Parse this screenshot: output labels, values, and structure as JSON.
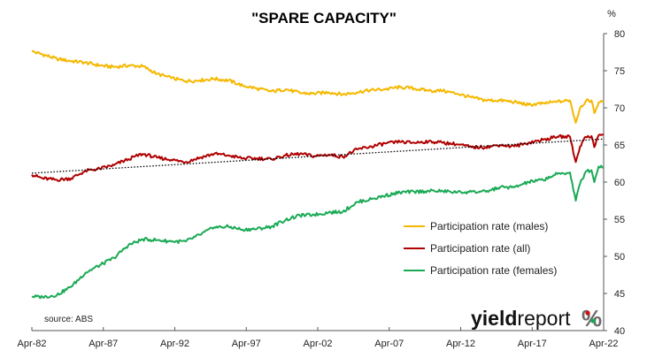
{
  "chart_data": {
    "type": "line",
    "title": "\"SPARE CAPACITY\"",
    "ylabel": "%",
    "xlabel": "",
    "ylim": [
      40,
      80
    ],
    "y_ticks": [
      "40",
      "45",
      "50",
      "55",
      "60",
      "65",
      "70",
      "75",
      "80"
    ],
    "x_ticks": [
      "Apr-82",
      "Apr-87",
      "Apr-92",
      "Apr-97",
      "Apr-02",
      "Apr-07",
      "Apr-12",
      "Apr-17",
      "Apr-22"
    ],
    "x_range": [
      1982.25,
      2022.25
    ],
    "grid": false,
    "legend_position": "lower-right",
    "source": "source: ABS",
    "logo": "yieldreport %",
    "series": [
      {
        "name": "Participation rate (males)",
        "color": "#f5b800",
        "points": [
          [
            1982.25,
            77.6
          ],
          [
            1983.0,
            77.2
          ],
          [
            1984.0,
            76.6
          ],
          [
            1985.0,
            76.3
          ],
          [
            1986.0,
            76.1
          ],
          [
            1987.0,
            75.7
          ],
          [
            1988.0,
            75.5
          ],
          [
            1989.0,
            75.7
          ],
          [
            1990.0,
            75.6
          ],
          [
            1991.0,
            74.6
          ],
          [
            1992.0,
            74.0
          ],
          [
            1993.0,
            73.6
          ],
          [
            1994.0,
            73.7
          ],
          [
            1995.0,
            73.9
          ],
          [
            1996.0,
            73.7
          ],
          [
            1997.0,
            73.0
          ],
          [
            1998.0,
            72.6
          ],
          [
            1999.0,
            72.2
          ],
          [
            2000.0,
            72.5
          ],
          [
            2001.0,
            72.0
          ],
          [
            2002.0,
            71.9
          ],
          [
            2003.0,
            72.1
          ],
          [
            2004.0,
            71.8
          ],
          [
            2005.0,
            72.1
          ],
          [
            2006.0,
            72.4
          ],
          [
            2007.0,
            72.5
          ],
          [
            2008.0,
            72.8
          ],
          [
            2009.0,
            72.6
          ],
          [
            2010.0,
            72.3
          ],
          [
            2011.0,
            72.3
          ],
          [
            2012.0,
            71.9
          ],
          [
            2013.0,
            71.4
          ],
          [
            2014.0,
            71.0
          ],
          [
            2015.0,
            71.0
          ],
          [
            2016.0,
            70.8
          ],
          [
            2017.0,
            70.4
          ],
          [
            2018.0,
            70.6
          ],
          [
            2019.0,
            70.8
          ],
          [
            2019.9,
            71.0
          ],
          [
            2020.3,
            68.0
          ],
          [
            2020.6,
            70.0
          ],
          [
            2021.0,
            70.9
          ],
          [
            2021.4,
            71.0
          ],
          [
            2021.6,
            69.3
          ],
          [
            2021.9,
            70.7
          ],
          [
            2022.25,
            70.8
          ]
        ]
      },
      {
        "name": "Participation rate (all)",
        "color": "#b00000",
        "points": [
          [
            1982.25,
            61.0
          ],
          [
            1983.0,
            60.5
          ],
          [
            1984.0,
            60.3
          ],
          [
            1985.0,
            60.5
          ],
          [
            1986.0,
            61.5
          ],
          [
            1987.0,
            61.8
          ],
          [
            1988.0,
            62.3
          ],
          [
            1989.0,
            63.1
          ],
          [
            1990.0,
            63.8
          ],
          [
            1991.0,
            63.3
          ],
          [
            1992.0,
            63.0
          ],
          [
            1993.0,
            62.7
          ],
          [
            1994.0,
            63.3
          ],
          [
            1995.0,
            63.8
          ],
          [
            1996.0,
            63.6
          ],
          [
            1997.0,
            63.2
          ],
          [
            1998.0,
            63.2
          ],
          [
            1999.0,
            63.1
          ],
          [
            2000.0,
            63.6
          ],
          [
            2001.0,
            63.8
          ],
          [
            2002.0,
            63.5
          ],
          [
            2003.0,
            63.7
          ],
          [
            2004.0,
            63.4
          ],
          [
            2005.0,
            64.4
          ],
          [
            2006.0,
            64.8
          ],
          [
            2007.0,
            65.2
          ],
          [
            2008.0,
            65.4
          ],
          [
            2009.0,
            65.3
          ],
          [
            2010.0,
            65.5
          ],
          [
            2011.0,
            65.3
          ],
          [
            2012.0,
            65.1
          ],
          [
            2013.0,
            64.7
          ],
          [
            2014.0,
            64.7
          ],
          [
            2015.0,
            65.0
          ],
          [
            2016.0,
            64.8
          ],
          [
            2017.0,
            65.3
          ],
          [
            2018.0,
            65.7
          ],
          [
            2019.0,
            66.1
          ],
          [
            2019.9,
            66.1
          ],
          [
            2020.3,
            62.7
          ],
          [
            2020.6,
            64.8
          ],
          [
            2021.0,
            66.1
          ],
          [
            2021.4,
            66.2
          ],
          [
            2021.6,
            64.7
          ],
          [
            2021.9,
            66.3
          ],
          [
            2022.25,
            66.4
          ]
        ]
      },
      {
        "name": "Participation rate (females)",
        "color": "#1aaa55",
        "points": [
          [
            1982.25,
            44.6
          ],
          [
            1983.0,
            44.5
          ],
          [
            1984.0,
            44.8
          ],
          [
            1985.0,
            45.9
          ],
          [
            1986.0,
            47.8
          ],
          [
            1987.0,
            48.8
          ],
          [
            1988.0,
            49.8
          ],
          [
            1989.0,
            51.5
          ],
          [
            1990.0,
            52.3
          ],
          [
            1991.0,
            52.2
          ],
          [
            1992.0,
            52.0
          ],
          [
            1993.0,
            52.0
          ],
          [
            1994.0,
            52.9
          ],
          [
            1995.0,
            53.9
          ],
          [
            1996.0,
            54.0
          ],
          [
            1997.0,
            53.6
          ],
          [
            1998.0,
            53.7
          ],
          [
            1999.0,
            54.0
          ],
          [
            2000.0,
            54.9
          ],
          [
            2001.0,
            55.5
          ],
          [
            2002.0,
            55.6
          ],
          [
            2003.0,
            55.9
          ],
          [
            2004.0,
            56.0
          ],
          [
            2005.0,
            57.3
          ],
          [
            2006.0,
            57.7
          ],
          [
            2007.0,
            58.2
          ],
          [
            2008.0,
            58.6
          ],
          [
            2009.0,
            58.7
          ],
          [
            2010.0,
            58.8
          ],
          [
            2011.0,
            58.8
          ],
          [
            2012.0,
            58.6
          ],
          [
            2013.0,
            58.7
          ],
          [
            2014.0,
            58.7
          ],
          [
            2015.0,
            59.3
          ],
          [
            2016.0,
            59.3
          ],
          [
            2017.0,
            60.0
          ],
          [
            2018.0,
            60.3
          ],
          [
            2019.0,
            61.1
          ],
          [
            2019.9,
            61.3
          ],
          [
            2020.3,
            57.5
          ],
          [
            2020.6,
            59.8
          ],
          [
            2021.0,
            61.4
          ],
          [
            2021.4,
            61.6
          ],
          [
            2021.6,
            60.0
          ],
          [
            2021.9,
            62.1
          ],
          [
            2022.25,
            62.0
          ]
        ]
      }
    ],
    "trendline": {
      "style": "dotted",
      "color": "#000000",
      "from": [
        1982.25,
        61.2
      ],
      "to": [
        2022.25,
        65.8
      ]
    }
  }
}
